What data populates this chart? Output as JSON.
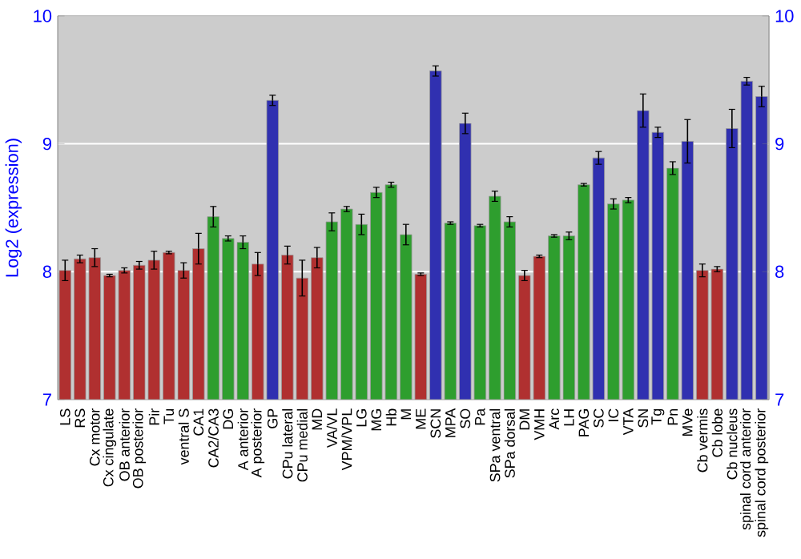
{
  "chart_data": {
    "type": "bar",
    "ylabel": "Log2 (expression)",
    "categories": [
      "LS",
      "RS",
      "Cx motor",
      "Cx cingulate",
      "OB anterior",
      "OB posterior",
      "Pir",
      "Tu",
      "ventral S",
      "CA1",
      "CA2/CA3",
      "DG",
      "A anterior",
      "A posterior",
      "GP",
      "CPu lateral",
      "CPu medial",
      "MD",
      "VA/VL",
      "VPM/VPL",
      "LG",
      "MG",
      "Hb",
      "M",
      "ME",
      "SCN",
      "MPA",
      "SO",
      "Pa",
      "SPa ventral",
      "SPa dorsal",
      "DM",
      "VMH",
      "Arc",
      "LH",
      "PAG",
      "SC",
      "IC",
      "VTA",
      "SN",
      "Tg",
      "Pn",
      "MVe",
      "Cb vermis",
      "Cb lobe",
      "Cb nucleus",
      "spinal cord anterior",
      "spinal cord posterior"
    ],
    "values": [
      8.01,
      8.1,
      8.11,
      7.97,
      8.01,
      8.05,
      8.09,
      8.15,
      8.01,
      8.18,
      8.43,
      8.26,
      8.23,
      8.06,
      9.34,
      8.13,
      7.95,
      8.11,
      8.39,
      8.49,
      8.37,
      8.62,
      8.68,
      8.29,
      7.98,
      9.57,
      8.38,
      9.16,
      8.36,
      8.59,
      8.39,
      7.97,
      8.12,
      8.28,
      8.28,
      8.68,
      8.89,
      8.53,
      8.56,
      9.26,
      9.09,
      8.81,
      9.02,
      8.01,
      8.02,
      9.12,
      9.49,
      9.37
    ],
    "errors": [
      0.08,
      0.03,
      0.07,
      0.01,
      0.02,
      0.03,
      0.07,
      0.01,
      0.06,
      0.12,
      0.08,
      0.02,
      0.05,
      0.09,
      0.04,
      0.07,
      0.14,
      0.08,
      0.07,
      0.02,
      0.08,
      0.04,
      0.02,
      0.08,
      0.01,
      0.04,
      0.01,
      0.08,
      0.01,
      0.04,
      0.04,
      0.04,
      0.01,
      0.01,
      0.03,
      0.01,
      0.05,
      0.04,
      0.02,
      0.13,
      0.04,
      0.05,
      0.17,
      0.05,
      0.02,
      0.15,
      0.03,
      0.08
    ],
    "colors": [
      "#b03030",
      "#b03030",
      "#b03030",
      "#b03030",
      "#b03030",
      "#b03030",
      "#b03030",
      "#b03030",
      "#b03030",
      "#b03030",
      "#2e9e2e",
      "#2e9e2e",
      "#2e9e2e",
      "#b03030",
      "#3030b0",
      "#b03030",
      "#b03030",
      "#b03030",
      "#2e9e2e",
      "#2e9e2e",
      "#2e9e2e",
      "#2e9e2e",
      "#2e9e2e",
      "#2e9e2e",
      "#b03030",
      "#3030b0",
      "#2e9e2e",
      "#3030b0",
      "#2e9e2e",
      "#2e9e2e",
      "#2e9e2e",
      "#b03030",
      "#b03030",
      "#2e9e2e",
      "#2e9e2e",
      "#2e9e2e",
      "#3030b0",
      "#2e9e2e",
      "#2e9e2e",
      "#3030b0",
      "#3030b0",
      "#2e9e2e",
      "#3030b0",
      "#b03030",
      "#b03030",
      "#3030b0",
      "#3030b0",
      "#3030b0"
    ],
    "ylim": [
      7,
      10
    ],
    "yticks": [
      7,
      8,
      9,
      10
    ],
    "y2lim": [
      7,
      10
    ],
    "y2ticks": [
      7,
      8,
      9,
      10
    ],
    "grid": "y"
  }
}
